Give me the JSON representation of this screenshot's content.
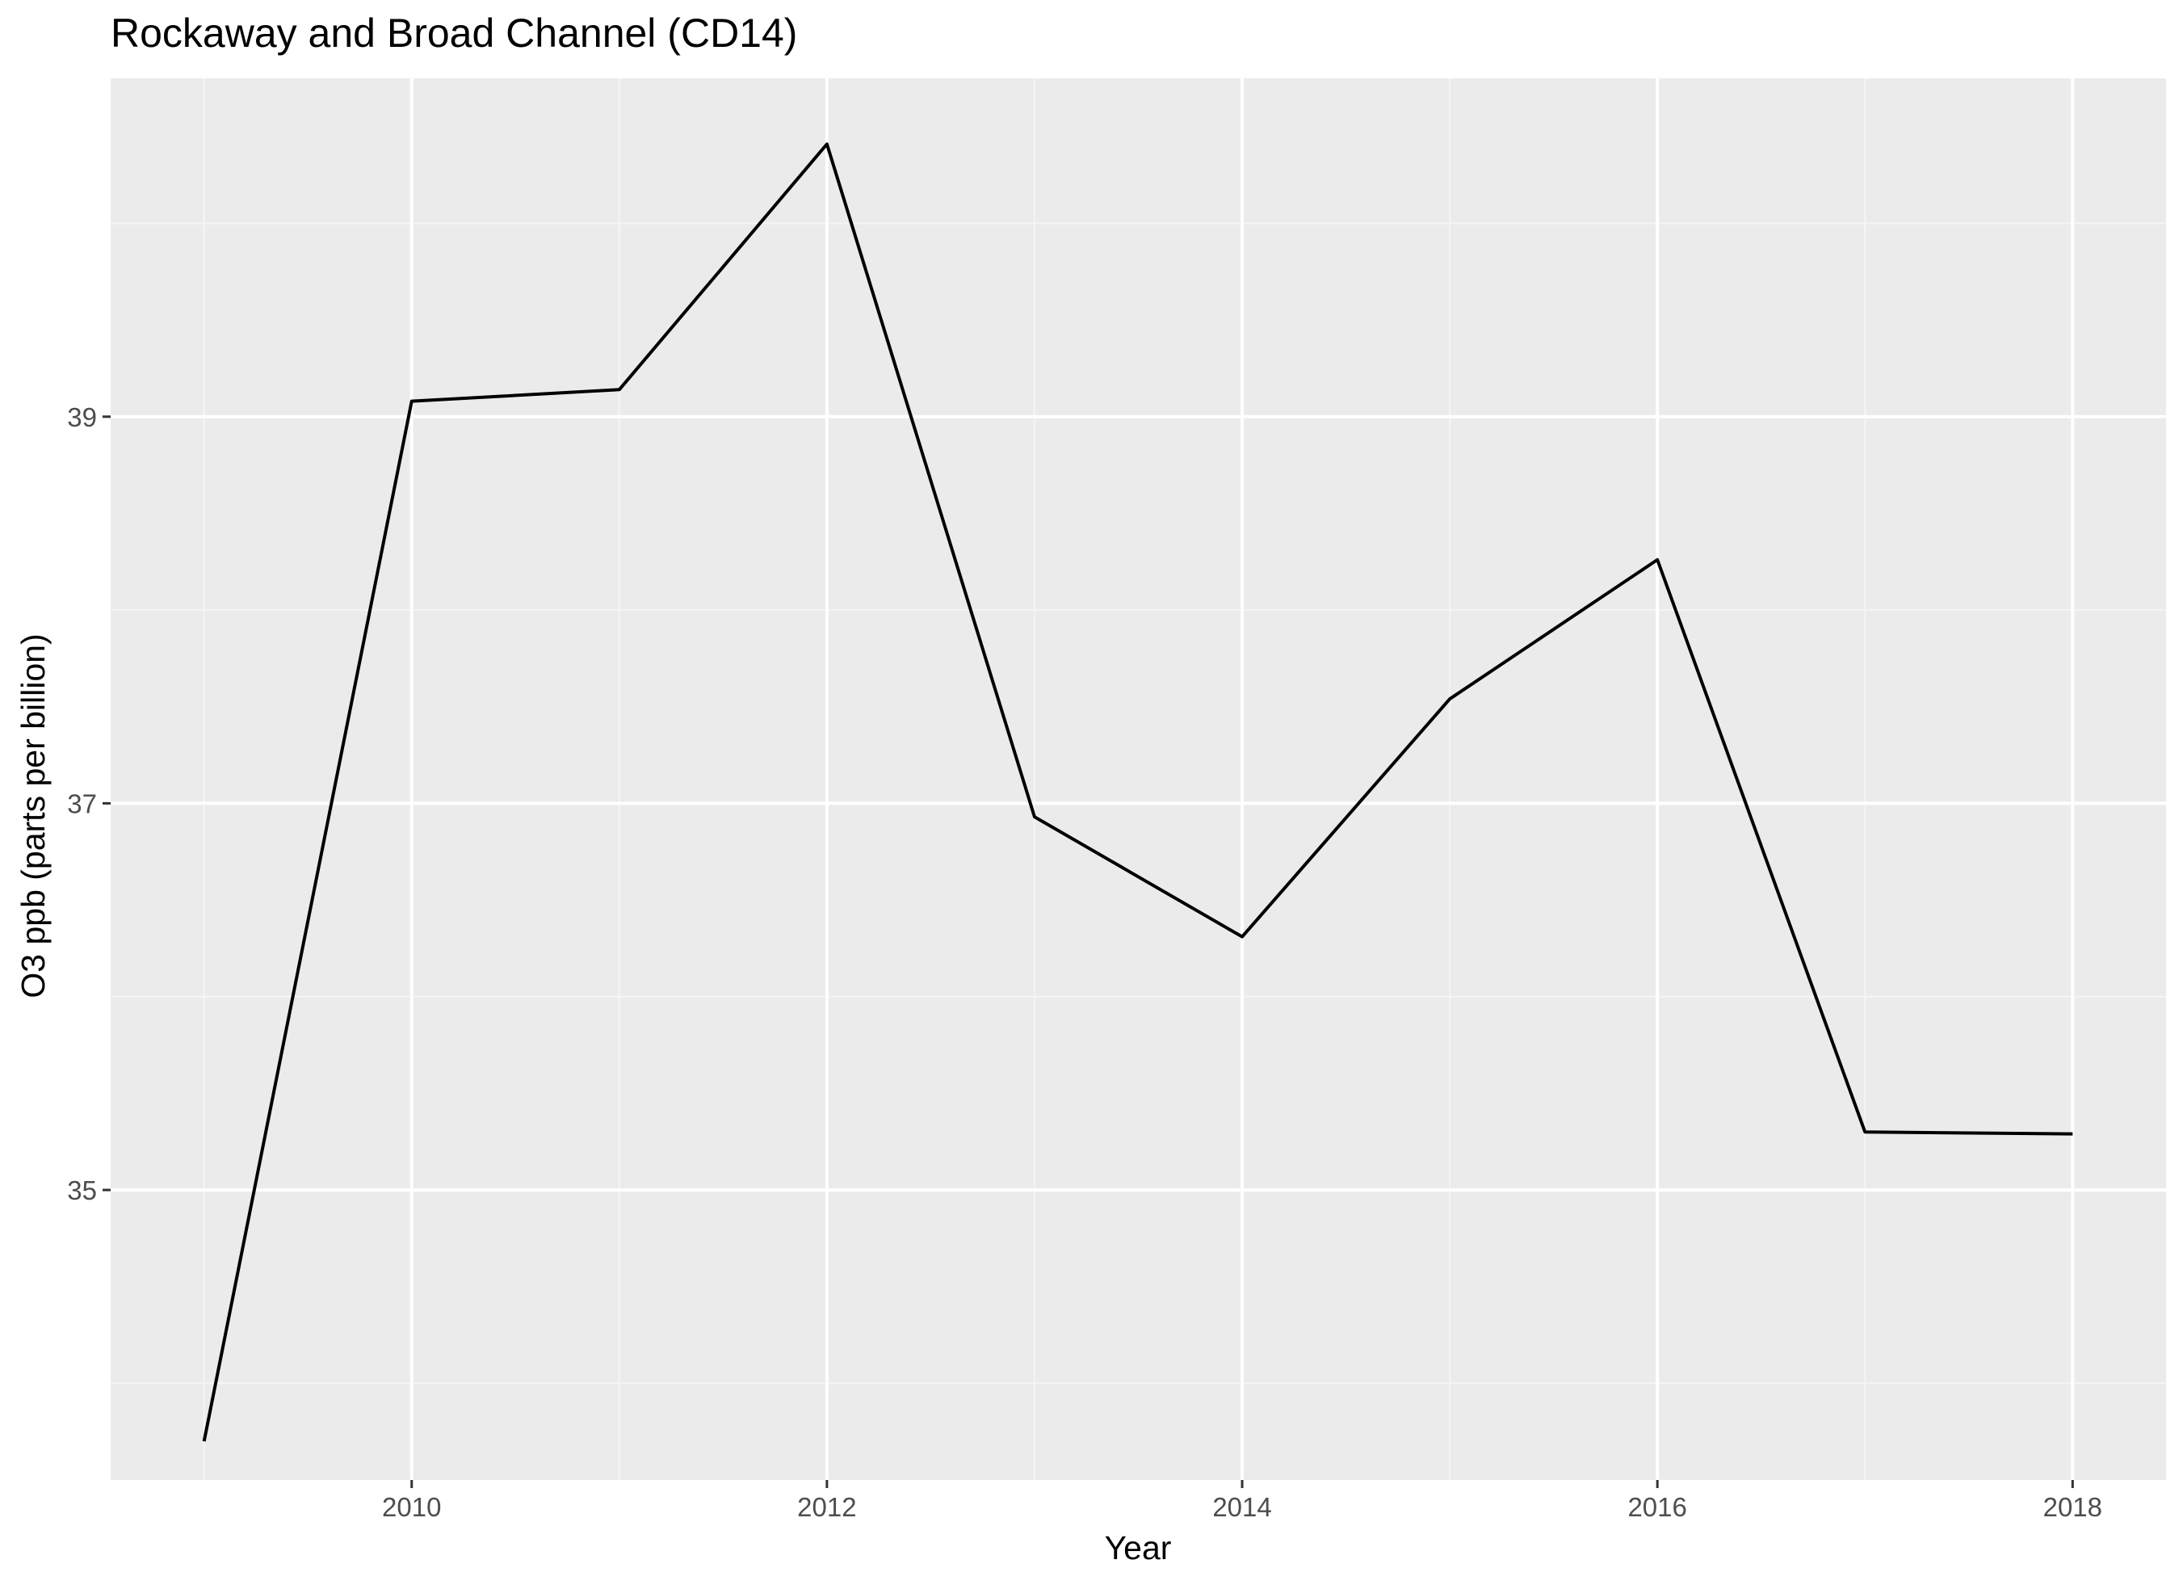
{
  "chart_data": {
    "type": "line",
    "title": "Rockaway and Broad Channel (CD14)",
    "xlabel": "Year",
    "ylabel": "O3 ppb (parts per billion)",
    "x": [
      2009,
      2010,
      2011,
      2012,
      2013,
      2014,
      2015,
      2016,
      2017,
      2018
    ],
    "series": [
      {
        "values": [
          33.7,
          39.08,
          39.14,
          40.41,
          36.93,
          36.31,
          37.54,
          38.26,
          35.3,
          35.29
        ]
      }
    ],
    "xlim": [
      2008.55,
      2018.45
    ],
    "ylim": [
      33.5,
      40.75
    ],
    "x_ticks": [
      2010,
      2012,
      2014,
      2016,
      2018
    ],
    "x_tick_labels": [
      "2010",
      "2012",
      "2014",
      "2016",
      "2018"
    ],
    "x_minor_ticks": [
      2009,
      2011,
      2013,
      2015,
      2017
    ],
    "y_ticks": [
      35,
      37,
      39
    ],
    "y_tick_labels": [
      "35",
      "37",
      "39"
    ],
    "y_minor_ticks": [
      34,
      36,
      38,
      40
    ],
    "grid": true,
    "legend": "none",
    "colors": {
      "panel_background": "#ebebeb",
      "grid_major": "#ffffff",
      "grid_minor": "#f5f5f5",
      "line": "#000000",
      "tick_mark": "#333333",
      "tick_label": "#4d4d4d"
    }
  }
}
